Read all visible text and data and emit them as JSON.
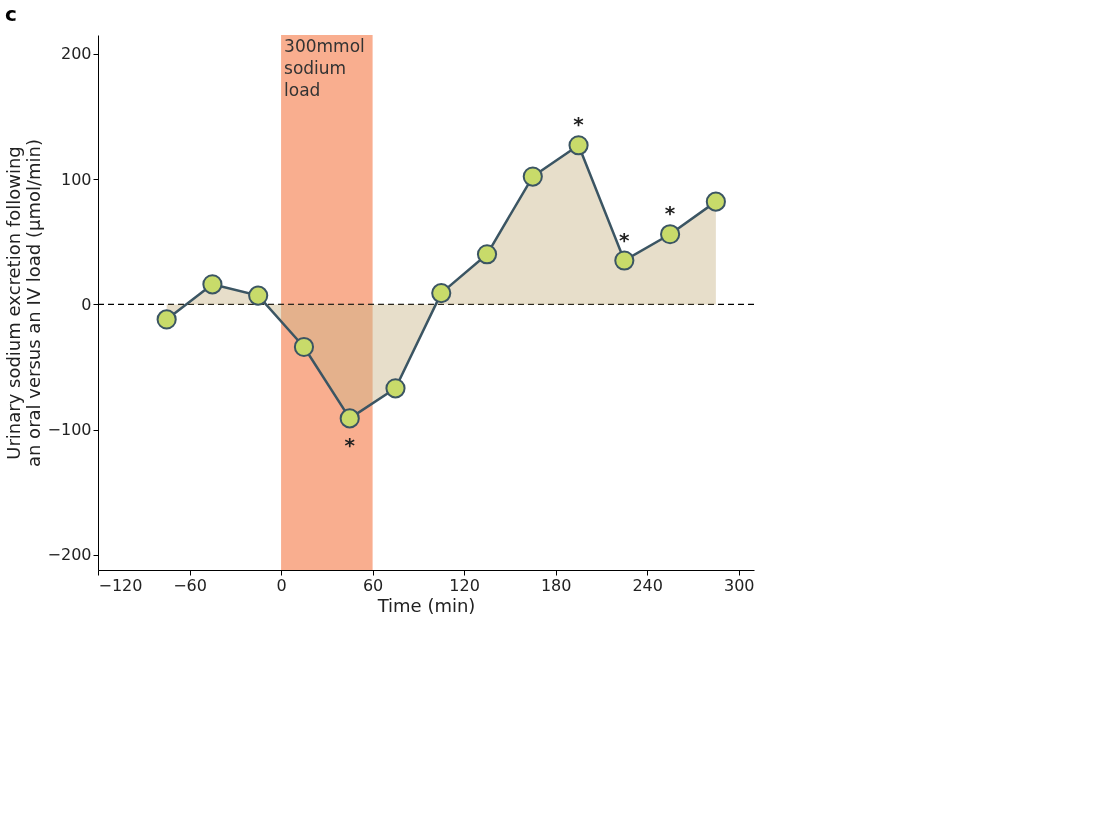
{
  "chart_data": {
    "type": "area",
    "title": "c",
    "xlabel": "Time (min)",
    "ylabel": "Urinary sodium excretion following an oral versus an IV load (μmol/min)",
    "x": [
      -75,
      -45,
      -15,
      15,
      45,
      75,
      105,
      135,
      165,
      195,
      225,
      255,
      285
    ],
    "series": [
      {
        "color": "#3b5563",
        "values": [
          -12,
          16,
          7,
          -34,
          -91,
          -67,
          9,
          40,
          102,
          127,
          35,
          56,
          82
        ]
      }
    ],
    "marker": "circle",
    "line_style": "solid",
    "grid": false,
    "xlim": [
      -120,
      310
    ],
    "ylim": [
      -212,
      215
    ],
    "xticks": [
      -120,
      -60,
      0,
      60,
      120,
      180,
      240,
      300
    ],
    "yticks": [
      -200,
      -100,
      0,
      100,
      200
    ],
    "ref_lines": [
      {
        "axis": "y",
        "value": 0,
        "line_style": "dashed",
        "color": "#000000"
      }
    ],
    "bands": [
      {
        "axis": "x",
        "from": 0,
        "to": 60,
        "label": "300mmol sodium load",
        "color": "#f9ae8f"
      }
    ],
    "annotations": [
      {
        "text": "*",
        "x": 45,
        "y": -91
      },
      {
        "text": "*",
        "x": 195,
        "y": 127
      },
      {
        "text": "*",
        "x": 225,
        "y": 35
      },
      {
        "text": "*",
        "x": 255,
        "y": 56
      }
    ]
  }
}
